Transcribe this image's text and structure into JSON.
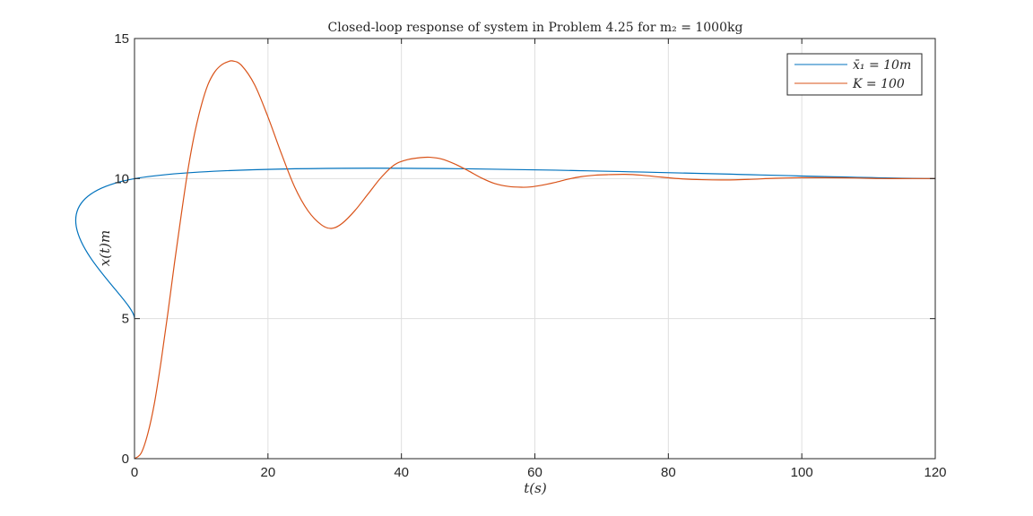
{
  "chart_data": {
    "type": "line",
    "title": "Closed-loop response of system in Problem 4.25 for m₂ = 1000kg",
    "xlabel": "t(s)",
    "ylabel": "x(t)m",
    "xlim": [
      0,
      120
    ],
    "ylim": [
      0,
      15
    ],
    "xticks": [
      0,
      20,
      40,
      60,
      80,
      100,
      120
    ],
    "yticks": [
      0,
      5,
      10,
      15
    ],
    "grid": true,
    "legend_position": "top-right",
    "series": [
      {
        "name": "x̄₁ = 10m",
        "color": "#0072BD",
        "x": [
          0,
          0.1,
          120
        ],
        "y": [
          5,
          10,
          10
        ]
      },
      {
        "name": "K = 100",
        "color": "#D95319",
        "x": [
          0,
          1,
          2,
          3,
          4,
          5,
          6,
          7,
          8,
          9,
          10,
          11,
          12,
          13,
          14,
          14.7,
          16,
          18,
          20,
          22,
          24,
          26,
          28,
          29.5,
          31,
          33,
          35,
          37,
          39,
          41,
          43,
          44.3,
          46,
          48,
          50,
          52,
          54,
          56,
          58,
          59.3,
          61,
          63,
          65,
          67,
          69,
          71,
          73.5,
          76,
          79,
          82,
          85,
          88.5,
          92,
          96,
          100,
          103.5,
          108,
          112,
          116,
          120
        ],
        "y": [
          0,
          0.2,
          0.9,
          2.0,
          3.5,
          5.2,
          7.0,
          8.7,
          10.3,
          11.6,
          12.6,
          13.35,
          13.8,
          14.05,
          14.17,
          14.2,
          14.05,
          13.35,
          12.2,
          10.9,
          9.7,
          8.85,
          8.35,
          8.22,
          8.38,
          8.85,
          9.45,
          10.05,
          10.5,
          10.68,
          10.75,
          10.76,
          10.7,
          10.52,
          10.28,
          10.02,
          9.82,
          9.72,
          9.69,
          9.7,
          9.76,
          9.86,
          9.98,
          10.07,
          10.12,
          10.14,
          10.15,
          10.12,
          10.05,
          9.99,
          9.96,
          9.95,
          9.97,
          10.01,
          10.03,
          10.03,
          10.02,
          10.0,
          10.0,
          10.0
        ]
      }
    ]
  }
}
